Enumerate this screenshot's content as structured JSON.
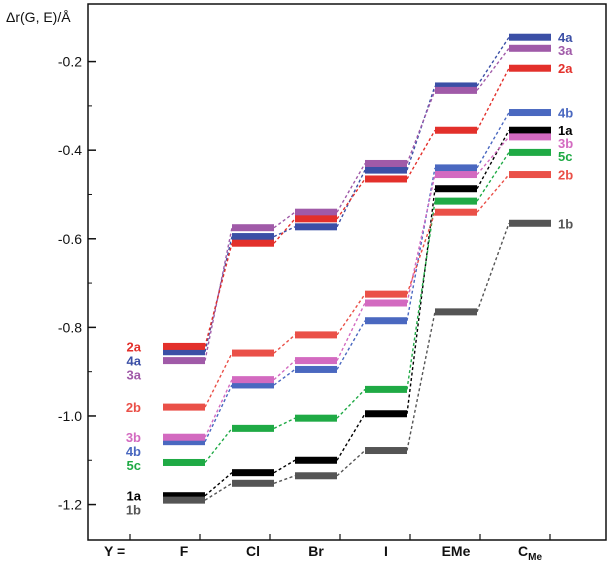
{
  "chart_data": {
    "type": "line",
    "ylabel": "Δr(G, E)/Å",
    "x_prefix": "Y =",
    "categories": [
      "F",
      "Cl",
      "Br",
      "I",
      "EMe",
      "C<sub>Me</sub>"
    ],
    "category_labels": [
      {
        "main": "F",
        "sub": ""
      },
      {
        "main": "Cl",
        "sub": ""
      },
      {
        "main": "Br",
        "sub": ""
      },
      {
        "main": "I",
        "sub": ""
      },
      {
        "main": "EMe",
        "sub": ""
      },
      {
        "main": "C",
        "sub": "Me"
      }
    ],
    "ylim": [
      -1.28,
      -0.07
    ],
    "yticks": [
      -1.2,
      -1.0,
      -0.8,
      -0.6,
      -0.4,
      -0.2
    ],
    "ytick_labels": [
      "-1.2",
      "-1.0",
      "-0.8",
      "-0.6",
      "-0.4",
      "-0.2"
    ],
    "series": [
      {
        "name": "4a",
        "color": "#3b4fa6",
        "values": [
          -0.855,
          -0.595,
          -0.573,
          -0.445,
          -0.255,
          -0.145
        ]
      },
      {
        "name": "3a",
        "color": "#a05aa8",
        "values": [
          -0.875,
          -0.575,
          -0.54,
          -0.43,
          -0.265,
          -0.17
        ]
      },
      {
        "name": "2a",
        "color": "#e3302b",
        "values": [
          -0.843,
          -0.61,
          -0.555,
          -0.465,
          -0.355,
          -0.215
        ]
      },
      {
        "name": "4b",
        "color": "#4a68c0",
        "values": [
          -1.058,
          -0.93,
          -0.895,
          -0.785,
          -0.44,
          -0.315
        ]
      },
      {
        "name": "1a",
        "color": "#000000",
        "values": [
          -1.18,
          -1.128,
          -1.1,
          -0.995,
          -0.487,
          -0.355
        ]
      },
      {
        "name": "3b",
        "color": "#d36ac0",
        "values": [
          -1.048,
          -0.918,
          -0.875,
          -0.745,
          -0.455,
          -0.37
        ]
      },
      {
        "name": "5c",
        "color": "#1faa45",
        "values": [
          -1.105,
          -1.028,
          -1.005,
          -0.94,
          -0.515,
          -0.405
        ]
      },
      {
        "name": "2b",
        "color": "#ea5048",
        "values": [
          -0.98,
          -0.858,
          -0.817,
          -0.725,
          -0.54,
          -0.455
        ]
      },
      {
        "name": "1b",
        "color": "#555555",
        "values": [
          -1.19,
          -1.152,
          -1.135,
          -1.078,
          -0.765,
          -0.565
        ]
      }
    ],
    "left_labels_order": [
      "2a",
      "4a",
      "3a",
      "2b",
      "3b",
      "4b",
      "5c",
      "1a",
      "1b"
    ],
    "right_labels_order": [
      "4a",
      "3a",
      "2a",
      "4b",
      "1a",
      "3b",
      "5c",
      "2b",
      "1b"
    ]
  }
}
